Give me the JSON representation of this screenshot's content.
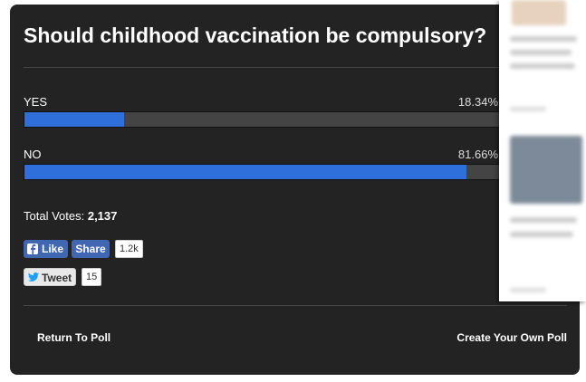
{
  "poll": {
    "title": "Should childhood vaccination be compulsory?",
    "options": [
      {
        "label": "YES",
        "value": 18.34,
        "value_label": "18.34%"
      },
      {
        "label": "NO",
        "value": 81.66,
        "value_label": "81.66%"
      }
    ],
    "total_label": "Total Votes:",
    "total_votes": "2,137",
    "share": {
      "like": "Like",
      "share": "Share",
      "share_count": "1.2k",
      "tweet": "Tweet",
      "tweet_count": "15"
    },
    "footer": {
      "return": "Return To Poll",
      "create": "Create Your Own Poll"
    }
  }
}
